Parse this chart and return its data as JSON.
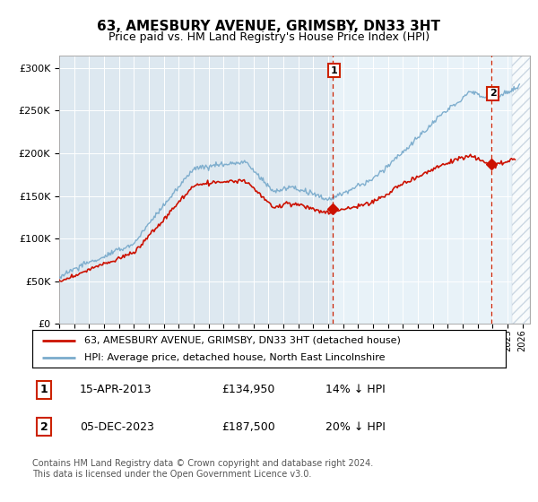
{
  "title": "63, AMESBURY AVENUE, GRIMSBY, DN33 3HT",
  "subtitle": "Price paid vs. HM Land Registry's House Price Index (HPI)",
  "title_fontsize": 11,
  "subtitle_fontsize": 9,
  "hpi_color": "#7aabcc",
  "price_color": "#cc1100",
  "dashed_color": "#cc2200",
  "background_plot": "#dde8f0",
  "background_plot2": "#e8f2f8",
  "ylabel_ticks": [
    "£0",
    "£50K",
    "£100K",
    "£150K",
    "£200K",
    "£250K",
    "£300K"
  ],
  "ytick_vals": [
    0,
    50000,
    100000,
    150000,
    200000,
    250000,
    300000
  ],
  "ylim": [
    0,
    315000
  ],
  "sale1_x": 2013.29,
  "sale1_y": 134950,
  "sale2_x": 2023.92,
  "sale2_y": 187500,
  "legend_line1": "63, AMESBURY AVENUE, GRIMSBY, DN33 3HT (detached house)",
  "legend_line2": "HPI: Average price, detached house, North East Lincolnshire",
  "table_row1": [
    "1",
    "15-APR-2013",
    "£134,950",
    "14% ↓ HPI"
  ],
  "table_row2": [
    "2",
    "05-DEC-2023",
    "£187,500",
    "20% ↓ HPI"
  ],
  "footer": "Contains HM Land Registry data © Crown copyright and database right 2024.\nThis data is licensed under the Open Government Licence v3.0.",
  "xmin": 1995,
  "xmax": 2026.5
}
